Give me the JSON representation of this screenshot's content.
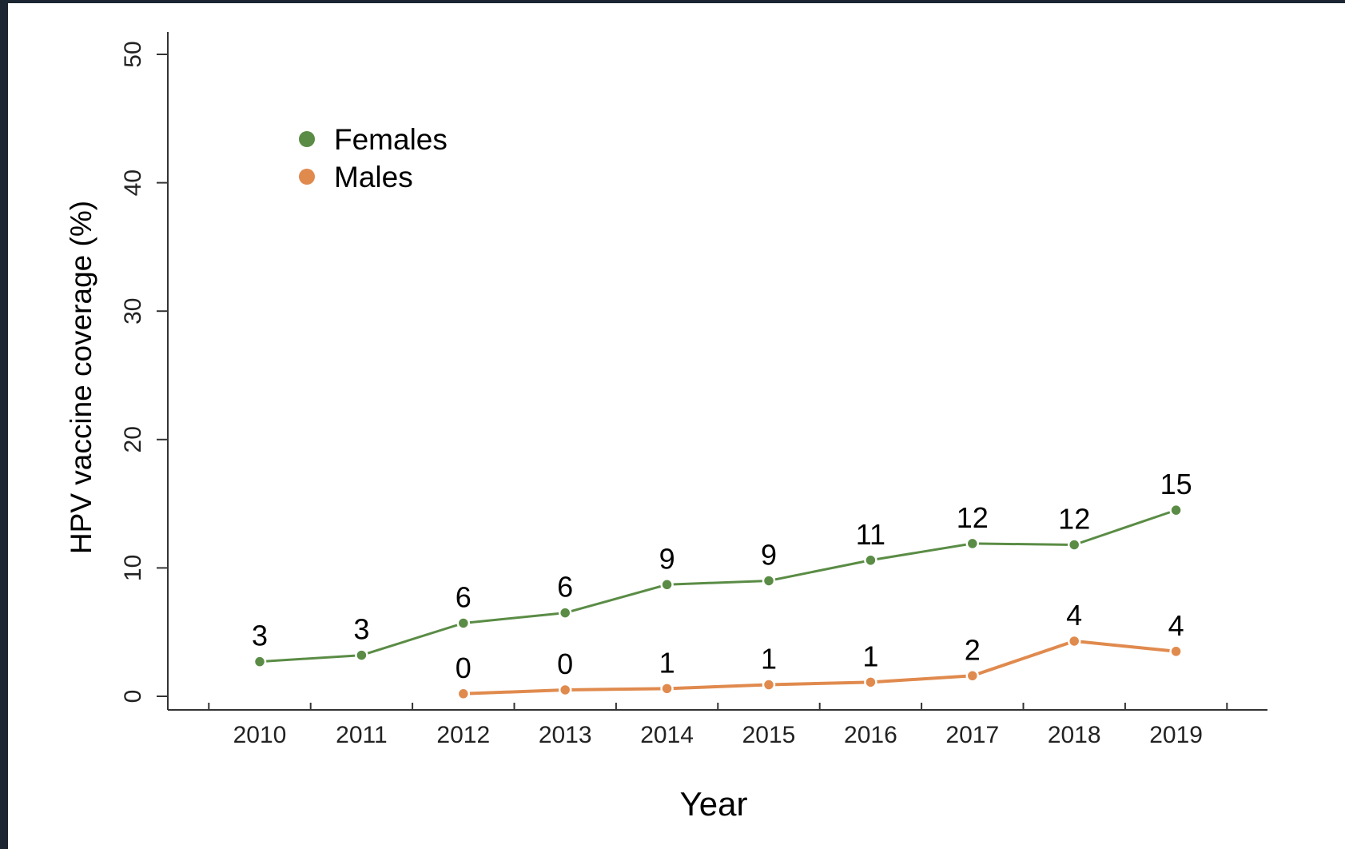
{
  "chart_data": {
    "type": "line",
    "title": "",
    "xlabel": "Year",
    "ylabel": "HPV vaccine coverage (%)",
    "ylim": [
      0,
      50
    ],
    "yticks": [
      "0",
      "10",
      "20",
      "30",
      "40",
      "50"
    ],
    "categories": [
      "2010",
      "2011",
      "2012",
      "2013",
      "2014",
      "2015",
      "2016",
      "2017",
      "2018",
      "2019"
    ],
    "grid": false,
    "legend_position": "top-left",
    "series": [
      {
        "name": "Females",
        "color": "#5a8c45",
        "values": [
          2.7,
          3.2,
          5.7,
          6.5,
          8.7,
          9.0,
          10.6,
          11.9,
          11.8,
          14.5
        ],
        "labels": [
          "3",
          "3",
          "6",
          "6",
          "9",
          "9",
          "11",
          "12",
          "12",
          "15"
        ]
      },
      {
        "name": "Males",
        "color": "#e08a4e",
        "values": [
          null,
          null,
          0.2,
          0.5,
          0.6,
          0.9,
          1.1,
          1.6,
          4.3,
          3.5
        ],
        "labels": [
          null,
          null,
          "0",
          "0",
          "1",
          "1",
          "1",
          "2",
          "4",
          "4"
        ]
      }
    ]
  }
}
